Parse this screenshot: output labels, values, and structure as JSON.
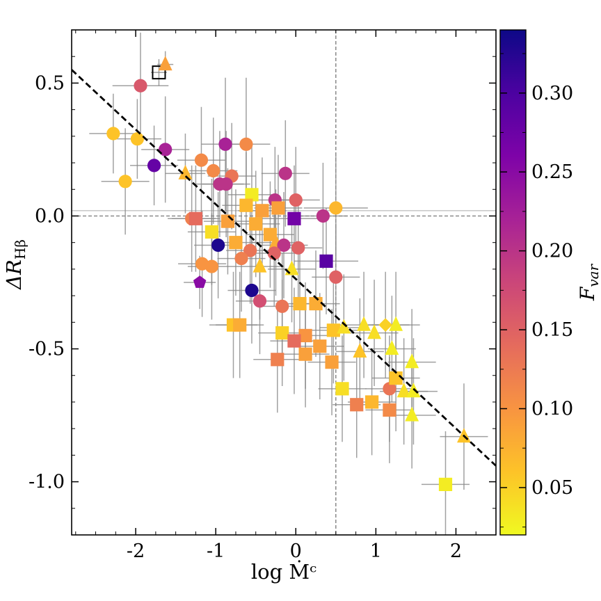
{
  "chart_data": {
    "type": "scatter",
    "xlabel": "log Ṁᶜ",
    "ylabel": "ΔR",
    "ylabel_sub": "Hβ",
    "xlim": [
      -2.8,
      2.5
    ],
    "ylim": [
      -1.2,
      0.7
    ],
    "xticks": [
      -2,
      -1,
      0,
      1,
      2
    ],
    "xtick_labels": [
      "-2",
      "-1",
      "0",
      "1",
      "2"
    ],
    "yticks": [
      0.5,
      0.0,
      -0.5,
      -1.0
    ],
    "ytick_labels": [
      "0.5",
      "0.0",
      "-0.5",
      "-1.0"
    ],
    "colorbar": {
      "title": "F",
      "title_sub": "var",
      "range": [
        0.02,
        0.34
      ],
      "ticks": [
        0.05,
        0.1,
        0.15,
        0.2,
        0.25,
        0.3
      ],
      "tick_labels": [
        "0.05",
        "0.10",
        "0.15",
        "0.20",
        "0.25",
        "0.30"
      ],
      "colormap": "plasma_r"
    },
    "reference_lines": {
      "vline_x": 0.5,
      "hline_y": 0.0,
      "hline2_y": 0.02
    },
    "fit_line": {
      "x": [
        -2.8,
        2.5
      ],
      "y": [
        0.55,
        -0.94
      ],
      "style": "dashed"
    },
    "points": [
      {
        "x": -1.71,
        "y": 0.54,
        "m": "square-open",
        "c": 0,
        "ex": 0.1,
        "ey": 0.05
      },
      {
        "x": -1.63,
        "y": 0.57,
        "m": "triangle",
        "c": 0.09,
        "ex": 0.1,
        "ey": 0.05
      },
      {
        "x": -1.94,
        "y": 0.49,
        "m": "circle",
        "c": 0.16,
        "ex": 0.35,
        "ey": 0.2
      },
      {
        "x": -2.28,
        "y": 0.31,
        "m": "circle",
        "c": 0.06,
        "ex": 0.3,
        "ey": 0.15
      },
      {
        "x": -1.98,
        "y": 0.29,
        "m": "circle",
        "c": 0.06,
        "ex": 0.3,
        "ey": 0.15
      },
      {
        "x": -1.63,
        "y": 0.25,
        "m": "circle",
        "c": 0.22,
        "ex": 0.3,
        "ey": 0.2
      },
      {
        "x": -1.77,
        "y": 0.19,
        "m": "circle",
        "c": 0.28,
        "ex": 0.3,
        "ey": 0.15
      },
      {
        "x": -2.13,
        "y": 0.13,
        "m": "circle",
        "c": 0.06,
        "ex": 0.3,
        "ey": 0.2
      },
      {
        "x": -0.88,
        "y": 0.27,
        "m": "circle",
        "c": 0.22,
        "ex": 0.3,
        "ey": 0.25
      },
      {
        "x": -0.62,
        "y": 0.27,
        "m": "circle",
        "c": 0.11,
        "ex": 0.3,
        "ey": 0.25
      },
      {
        "x": -1.18,
        "y": 0.21,
        "m": "circle",
        "c": 0.11,
        "ex": 0.3,
        "ey": 0.2
      },
      {
        "x": -1.03,
        "y": 0.17,
        "m": "circle",
        "c": 0.11,
        "ex": 0.3,
        "ey": 0.2
      },
      {
        "x": -0.8,
        "y": 0.15,
        "m": "circle",
        "c": 0.13,
        "ex": 0.3,
        "ey": 0.2
      },
      {
        "x": -0.13,
        "y": 0.16,
        "m": "circle",
        "c": 0.2,
        "ex": 0.3,
        "ey": 0.2
      },
      {
        "x": -0.95,
        "y": 0.12,
        "m": "circle",
        "c": 0.2,
        "ex": 0.3,
        "ey": 0.2
      },
      {
        "x": -0.87,
        "y": 0.12,
        "m": "circle",
        "c": 0.2,
        "ex": 0.3,
        "ey": 0.2
      },
      {
        "x": -1.38,
        "y": 0.16,
        "m": "triangle",
        "c": 0.07,
        "ex": 0.25,
        "ey": 0.15
      },
      {
        "x": -0.55,
        "y": 0.08,
        "m": "square",
        "c": 0.03,
        "ex": 0.3,
        "ey": 0.2
      },
      {
        "x": -0.26,
        "y": 0.06,
        "m": "circle",
        "c": 0.2,
        "ex": 0.3,
        "ey": 0.2
      },
      {
        "x": 0.0,
        "y": 0.06,
        "m": "circle",
        "c": 0.15,
        "ex": 0.3,
        "ey": 0.2
      },
      {
        "x": -0.62,
        "y": 0.04,
        "m": "square",
        "c": 0.07,
        "ex": 0.3,
        "ey": 0.2
      },
      {
        "x": 0.5,
        "y": 0.03,
        "m": "circle",
        "c": 0.07,
        "ex": 0.4,
        "ey": 0.2
      },
      {
        "x": 0.34,
        "y": 0.0,
        "m": "circle",
        "c": 0.2,
        "ex": 0.3,
        "ey": 0.2
      },
      {
        "x": -0.02,
        "y": -0.01,
        "m": "square",
        "c": 0.27,
        "ex": 0.4,
        "ey": 0.2
      },
      {
        "x": -0.22,
        "y": 0.03,
        "m": "square",
        "c": 0.09,
        "ex": 0.3,
        "ey": 0.2
      },
      {
        "x": -0.42,
        "y": 0.02,
        "m": "square",
        "c": 0.09,
        "ex": 0.3,
        "ey": 0.2
      },
      {
        "x": -1.3,
        "y": -0.01,
        "m": "circle",
        "c": 0.12,
        "ex": 0.3,
        "ey": 0.2
      },
      {
        "x": -1.25,
        "y": -0.01,
        "m": "square",
        "c": 0.14,
        "ex": 0.3,
        "ey": 0.2
      },
      {
        "x": -0.85,
        "y": -0.02,
        "m": "square",
        "c": 0.09,
        "ex": 0.3,
        "ey": 0.2
      },
      {
        "x": -0.5,
        "y": -0.03,
        "m": "square",
        "c": 0.08,
        "ex": 0.3,
        "ey": 0.2
      },
      {
        "x": -1.05,
        "y": -0.06,
        "m": "square",
        "c": 0.04,
        "ex": 0.3,
        "ey": 0.2
      },
      {
        "x": -0.32,
        "y": -0.07,
        "m": "square",
        "c": 0.08,
        "ex": 0.3,
        "ey": 0.2
      },
      {
        "x": -0.25,
        "y": -0.1,
        "m": "triangle",
        "c": 0.08,
        "ex": 0.3,
        "ey": 0.2
      },
      {
        "x": -0.75,
        "y": -0.1,
        "m": "square",
        "c": 0.08,
        "ex": 0.3,
        "ey": 0.2
      },
      {
        "x": -0.97,
        "y": -0.11,
        "m": "circle",
        "c": 0.33,
        "ex": 0.3,
        "ey": 0.2
      },
      {
        "x": -0.15,
        "y": -0.11,
        "m": "circle",
        "c": 0.2,
        "ex": 0.3,
        "ey": 0.2
      },
      {
        "x": 0.03,
        "y": -0.12,
        "m": "circle",
        "c": 0.15,
        "ex": 0.3,
        "ey": 0.2
      },
      {
        "x": -0.57,
        "y": -0.13,
        "m": "circle",
        "c": 0.13,
        "ex": 0.3,
        "ey": 0.2
      },
      {
        "x": -0.27,
        "y": -0.14,
        "m": "circle",
        "c": 0.15,
        "ex": 0.3,
        "ey": 0.2
      },
      {
        "x": -0.68,
        "y": -0.16,
        "m": "circle",
        "c": 0.12,
        "ex": 0.3,
        "ey": 0.2
      },
      {
        "x": -1.17,
        "y": -0.18,
        "m": "circle",
        "c": 0.1,
        "ex": 0.3,
        "ey": 0.2
      },
      {
        "x": -1.05,
        "y": -0.19,
        "m": "circle",
        "c": 0.1,
        "ex": 0.3,
        "ey": 0.2
      },
      {
        "x": 0.38,
        "y": -0.17,
        "m": "square",
        "c": 0.29,
        "ex": 0.4,
        "ey": 0.2
      },
      {
        "x": -0.45,
        "y": -0.19,
        "m": "triangle",
        "c": 0.06,
        "ex": 0.3,
        "ey": 0.2
      },
      {
        "x": -0.05,
        "y": -0.2,
        "m": "triangle",
        "c": 0.04,
        "ex": 0.3,
        "ey": 0.2
      },
      {
        "x": 0.5,
        "y": -0.23,
        "m": "circle",
        "c": 0.15,
        "ex": 0.3,
        "ey": 0.2
      },
      {
        "x": -1.2,
        "y": -0.25,
        "m": "pentagon",
        "c": 0.25,
        "ex": 0.2,
        "ey": 0.1
      },
      {
        "x": -0.55,
        "y": -0.28,
        "m": "circle",
        "c": 0.33,
        "ex": 0.3,
        "ey": 0.2
      },
      {
        "x": -0.45,
        "y": -0.32,
        "m": "circle",
        "c": 0.17,
        "ex": 0.3,
        "ey": 0.2
      },
      {
        "x": -0.17,
        "y": -0.34,
        "m": "circle",
        "c": 0.13,
        "ex": 0.3,
        "ey": 0.2
      },
      {
        "x": 0.05,
        "y": -0.33,
        "m": "square",
        "c": 0.07,
        "ex": 0.3,
        "ey": 0.2
      },
      {
        "x": 0.25,
        "y": -0.33,
        "m": "square",
        "c": 0.08,
        "ex": 0.3,
        "ey": 0.2
      },
      {
        "x": -0.78,
        "y": -0.41,
        "m": "square",
        "c": 0.06,
        "ex": 0.3,
        "ey": 0.2
      },
      {
        "x": -0.7,
        "y": -0.41,
        "m": "square",
        "c": 0.08,
        "ex": 0.3,
        "ey": 0.2
      },
      {
        "x": -0.17,
        "y": -0.44,
        "m": "square",
        "c": 0.05,
        "ex": 0.3,
        "ey": 0.2
      },
      {
        "x": 0.12,
        "y": -0.45,
        "m": "square",
        "c": 0.1,
        "ex": 0.3,
        "ey": 0.2
      },
      {
        "x": -0.02,
        "y": -0.47,
        "m": "square",
        "c": 0.14,
        "ex": 0.3,
        "ey": 0.2
      },
      {
        "x": 0.3,
        "y": -0.49,
        "m": "square",
        "c": 0.09,
        "ex": 0.3,
        "ey": 0.2
      },
      {
        "x": 0.47,
        "y": -0.43,
        "m": "square",
        "c": 0.06,
        "ex": 0.3,
        "ey": 0.2
      },
      {
        "x": 0.6,
        "y": -0.42,
        "m": "triangle",
        "c": 0.04,
        "ex": 0.3,
        "ey": 0.2
      },
      {
        "x": 0.12,
        "y": -0.52,
        "m": "square",
        "c": 0.09,
        "ex": 0.3,
        "ey": 0.2
      },
      {
        "x": 0.45,
        "y": -0.55,
        "m": "square",
        "c": 0.09,
        "ex": 0.3,
        "ey": 0.2
      },
      {
        "x": -0.23,
        "y": -0.54,
        "m": "square",
        "c": 0.12,
        "ex": 0.3,
        "ey": 0.2
      },
      {
        "x": 0.85,
        "y": -0.41,
        "m": "triangle",
        "c": 0.04,
        "ex": 0.3,
        "ey": 0.2
      },
      {
        "x": 0.98,
        "y": -0.44,
        "m": "triangle",
        "c": 0.04,
        "ex": 0.3,
        "ey": 0.2
      },
      {
        "x": 1.12,
        "y": -0.41,
        "m": "diamond",
        "c": 0.05,
        "ex": 0.3,
        "ey": 0.2
      },
      {
        "x": 1.25,
        "y": -0.41,
        "m": "triangle",
        "c": 0.03,
        "ex": 0.3,
        "ey": 0.2
      },
      {
        "x": 0.8,
        "y": -0.51,
        "m": "triangle",
        "c": 0.06,
        "ex": 0.3,
        "ey": 0.2
      },
      {
        "x": 1.2,
        "y": -0.5,
        "m": "triangle",
        "c": 0.03,
        "ex": 0.3,
        "ey": 0.2
      },
      {
        "x": 0.58,
        "y": -0.65,
        "m": "square",
        "c": 0.04,
        "ex": 0.3,
        "ey": 0.2
      },
      {
        "x": 1.45,
        "y": -0.55,
        "m": "triangle",
        "c": 0.03,
        "ex": 0.3,
        "ey": 0.2
      },
      {
        "x": 1.17,
        "y": -0.65,
        "m": "circle",
        "c": 0.13,
        "ex": 0.3,
        "ey": 0.2
      },
      {
        "x": 1.25,
        "y": -0.61,
        "m": "square",
        "c": 0.06,
        "ex": 0.3,
        "ey": 0.2
      },
      {
        "x": 1.35,
        "y": -0.66,
        "m": "triangle",
        "c": 0.04,
        "ex": 0.3,
        "ey": 0.2
      },
      {
        "x": 1.47,
        "y": -0.66,
        "m": "triangle",
        "c": 0.03,
        "ex": 0.3,
        "ey": 0.2
      },
      {
        "x": 0.95,
        "y": -0.7,
        "m": "square",
        "c": 0.07,
        "ex": 0.3,
        "ey": 0.2
      },
      {
        "x": 0.76,
        "y": -0.71,
        "m": "square",
        "c": 0.12,
        "ex": 0.3,
        "ey": 0.2
      },
      {
        "x": 1.17,
        "y": -0.73,
        "m": "square",
        "c": 0.11,
        "ex": 0.3,
        "ey": 0.2
      },
      {
        "x": 1.45,
        "y": -0.75,
        "m": "triangle",
        "c": 0.03,
        "ex": 0.3,
        "ey": 0.2
      },
      {
        "x": 2.1,
        "y": -0.83,
        "m": "triangle",
        "c": 0.06,
        "ex": 0.3,
        "ey": 0.2
      },
      {
        "x": 1.87,
        "y": -1.01,
        "m": "square",
        "c": 0.03,
        "ex": 0.3,
        "ey": 0.2
      }
    ]
  }
}
